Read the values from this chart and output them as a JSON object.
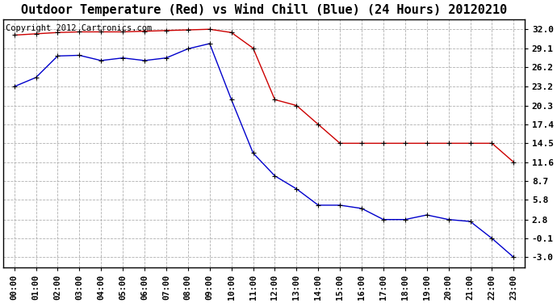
{
  "title": "Outdoor Temperature (Red) vs Wind Chill (Blue) (24 Hours) 20120210",
  "copyright": "Copyright 2012 Cartronics.com",
  "x_labels": [
    "00:00",
    "01:00",
    "02:00",
    "03:00",
    "04:00",
    "05:00",
    "06:00",
    "07:00",
    "08:00",
    "09:00",
    "10:00",
    "11:00",
    "12:00",
    "13:00",
    "14:00",
    "15:00",
    "16:00",
    "17:00",
    "18:00",
    "19:00",
    "20:00",
    "21:00",
    "22:00",
    "23:00"
  ],
  "temp_red": [
    31.1,
    31.3,
    31.5,
    31.6,
    31.6,
    31.6,
    31.7,
    31.8,
    31.9,
    32.0,
    31.5,
    29.1,
    21.2,
    20.3,
    17.4,
    14.5,
    14.5,
    14.5,
    14.5,
    14.5,
    14.5,
    14.5,
    14.5,
    11.6
  ],
  "wind_chill_blue": [
    23.2,
    24.6,
    27.9,
    28.0,
    27.2,
    27.6,
    27.2,
    27.6,
    29.0,
    29.8,
    21.2,
    13.0,
    9.5,
    7.5,
    5.0,
    5.0,
    4.5,
    2.8,
    2.8,
    3.5,
    2.8,
    2.5,
    -0.1,
    -3.0
  ],
  "y_ticks": [
    32.0,
    29.1,
    26.2,
    23.2,
    20.3,
    17.4,
    14.5,
    11.6,
    8.7,
    5.8,
    2.8,
    -0.1,
    -3.0
  ],
  "ylim": [
    -4.5,
    33.5
  ],
  "red_color": "#cc0000",
  "blue_color": "#0000cc",
  "bg_color": "#ffffff",
  "grid_color": "#b0b0b0",
  "title_fontsize": 11,
  "copyright_fontsize": 7.5,
  "tick_fontsize": 7.5,
  "ytick_fontsize": 8.0
}
